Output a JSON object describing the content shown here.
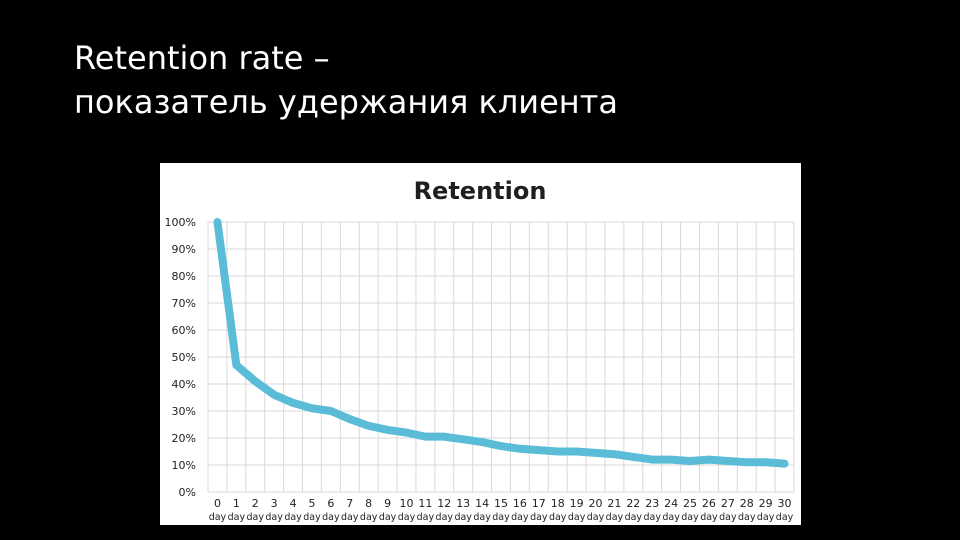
{
  "slide": {
    "title_line1": "Retention rate –",
    "title_line2": "показатель удержания клиента"
  },
  "colors": {
    "background": "#000000",
    "title_text": "#ffffff",
    "chart_background": "#ffffff",
    "gridline": "#d9d9d9",
    "series_line": "#5bbcd8"
  },
  "chart_data": {
    "type": "line",
    "title": "Retention",
    "xlabel": "",
    "ylabel": "",
    "x_tick_numbers": [
      "0",
      "1",
      "2",
      "3",
      "4",
      "5",
      "6",
      "7",
      "8",
      "9",
      "10",
      "11",
      "12",
      "13",
      "14",
      "15",
      "16",
      "17",
      "18",
      "19",
      "20",
      "21",
      "22",
      "23",
      "24",
      "25",
      "26",
      "27",
      "28",
      "29",
      "30"
    ],
    "x_tick_unit": "day",
    "y_ticks": [
      "0%",
      "10%",
      "20%",
      "30%",
      "40%",
      "50%",
      "60%",
      "70%",
      "80%",
      "90%",
      "100%"
    ],
    "ylim": [
      0,
      100
    ],
    "grid": true,
    "series": [
      {
        "values": [
          100,
          47,
          41,
          36,
          33,
          31,
          30,
          27,
          24.5,
          23,
          22,
          20.5,
          20.5,
          19.5,
          18.5,
          17,
          16,
          15.5,
          15,
          15,
          14.5,
          14,
          13,
          12,
          12,
          11.5,
          12,
          11.5,
          11,
          11,
          10.5
        ]
      }
    ]
  }
}
